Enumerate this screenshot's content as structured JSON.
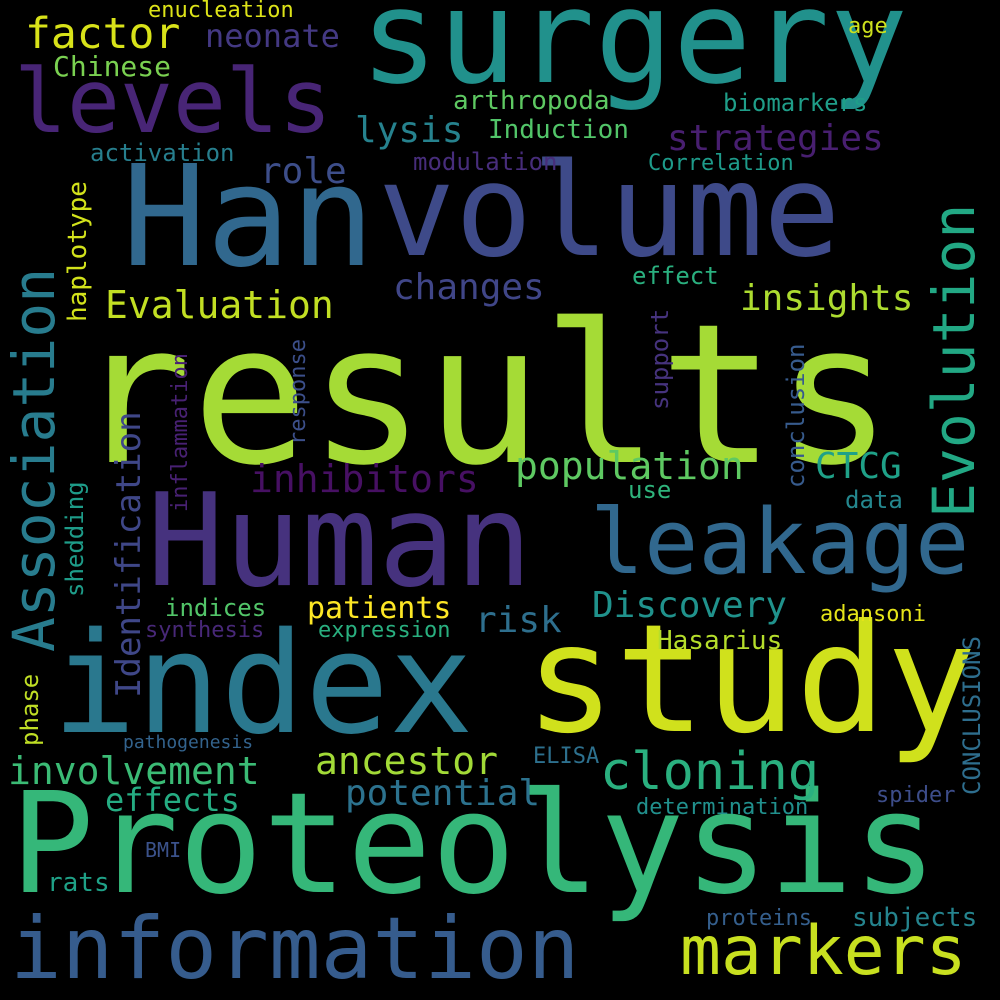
{
  "words": [
    {
      "text": "results",
      "color": "#a5db36"
    },
    {
      "text": "Proteolysis",
      "color": "#35b779"
    },
    {
      "text": "index",
      "color": "#2a788e"
    },
    {
      "text": "study",
      "color": "#d0e11c"
    },
    {
      "text": "Human",
      "color": "#46327e"
    },
    {
      "text": "Han",
      "color": "#31688e"
    },
    {
      "text": "volume",
      "color": "#3e4a89"
    },
    {
      "text": "surgery",
      "color": "#21918c"
    },
    {
      "text": "information",
      "color": "#365c8d"
    },
    {
      "text": "leakage",
      "color": "#31688e"
    },
    {
      "text": "levels",
      "color": "#482576"
    },
    {
      "text": "Association",
      "color": "#287c8e"
    },
    {
      "text": "Evolution",
      "color": "#22a884"
    },
    {
      "text": "markers",
      "color": "#c8e020"
    },
    {
      "text": "cloning",
      "color": "#2ab07f"
    },
    {
      "text": "factor",
      "color": "#d8e219"
    },
    {
      "text": "Evaluation",
      "color": "#c2df23"
    },
    {
      "text": "population",
      "color": "#5ec962"
    },
    {
      "text": "inhibitors",
      "color": "#471063"
    },
    {
      "text": "ancestor",
      "color": "#a2da37"
    },
    {
      "text": "involvement",
      "color": "#3bbb75"
    },
    {
      "text": "Discovery",
      "color": "#20928c"
    },
    {
      "text": "changes",
      "color": "#404688"
    },
    {
      "text": "insights",
      "color": "#addc30"
    },
    {
      "text": "strategies",
      "color": "#481f70"
    },
    {
      "text": "role",
      "color": "#3d4e8a"
    },
    {
      "text": "lysis",
      "color": "#26828e"
    },
    {
      "text": "CTCG",
      "color": "#1fa188"
    },
    {
      "text": "risk",
      "color": "#2e6f8e"
    },
    {
      "text": "potential",
      "color": "#2c728e"
    },
    {
      "text": "patients",
      "color": "#fde725"
    },
    {
      "text": "effects",
      "color": "#25ac82"
    },
    {
      "text": "Identification",
      "color": "#3f4788"
    },
    {
      "text": "neonate",
      "color": "#443983"
    },
    {
      "text": "Chinese",
      "color": "#7ad151"
    },
    {
      "text": "arthropoda",
      "color": "#5ec962"
    },
    {
      "text": "Induction",
      "color": "#52c569"
    },
    {
      "text": "biomarkers",
      "color": "#1f9e89"
    },
    {
      "text": "activation",
      "color": "#277f8e"
    },
    {
      "text": "modulation",
      "color": "#472d7b"
    },
    {
      "text": "Correlation",
      "color": "#1e9b8a"
    },
    {
      "text": "haplotype",
      "color": "#d2e21b"
    },
    {
      "text": "effect",
      "color": "#2ab07f"
    },
    {
      "text": "CONCLUSIONS",
      "color": "#2e6e8e"
    },
    {
      "text": "Hasarius",
      "color": "#b5de2b"
    },
    {
      "text": "enucleation",
      "color": "#dde318"
    },
    {
      "text": "age",
      "color": "#cde11d"
    },
    {
      "text": "conclusion",
      "color": "#375b8d"
    },
    {
      "text": "support",
      "color": "#46337e"
    },
    {
      "text": "response",
      "color": "#3c4f8a"
    },
    {
      "text": "inflammation",
      "color": "#482173"
    },
    {
      "text": "use",
      "color": "#2fb47c"
    },
    {
      "text": "data",
      "color": "#24878e"
    },
    {
      "text": "shedding",
      "color": "#1e9c89"
    },
    {
      "text": "indices",
      "color": "#52c569"
    },
    {
      "text": "synthesis",
      "color": "#482878"
    },
    {
      "text": "expression",
      "color": "#29af7f"
    },
    {
      "text": "adansoni",
      "color": "#e5e419"
    },
    {
      "text": "phase",
      "color": "#c0df25"
    },
    {
      "text": "pathogenesis",
      "color": "#33638d"
    },
    {
      "text": "ELISA",
      "color": "#2d708e"
    },
    {
      "text": "determination",
      "color": "#21908d"
    },
    {
      "text": "spider",
      "color": "#3d4d8a"
    },
    {
      "text": "BMI",
      "color": "#3b528b"
    },
    {
      "text": "rats",
      "color": "#1fa187"
    },
    {
      "text": "proteins",
      "color": "#355f8d"
    },
    {
      "text": "subjects",
      "color": "#25848e"
    }
  ]
}
